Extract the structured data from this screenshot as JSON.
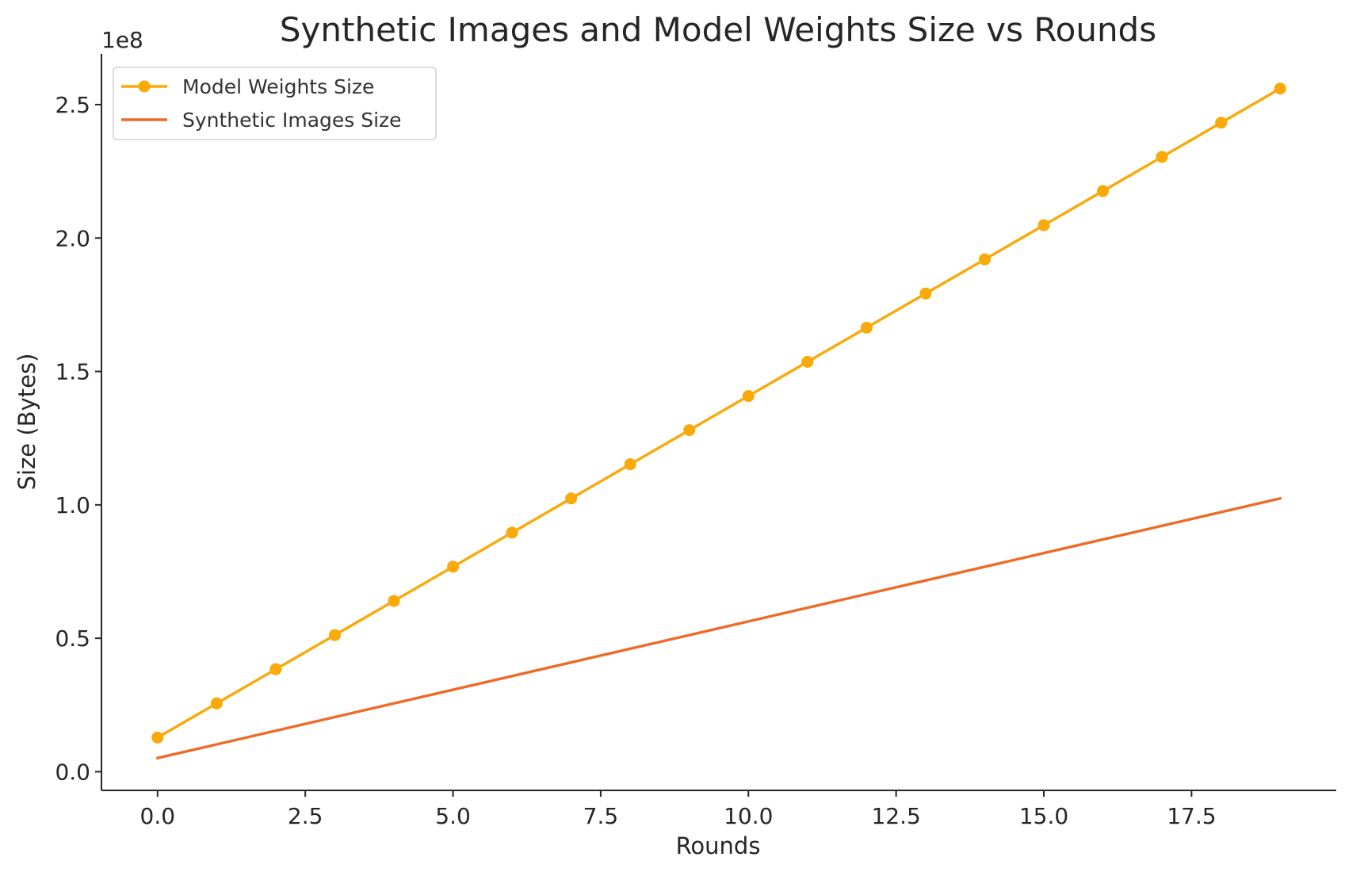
{
  "chart_data": {
    "type": "line",
    "title": "Synthetic Images and Model Weights Size vs Rounds",
    "xlabel": "Rounds",
    "ylabel": "Size (Bytes)",
    "y_offset_label": "1e8",
    "xlim": [
      -0.95,
      19.95
    ],
    "ylim": [
      -7000000,
      269000000
    ],
    "x_ticks": [
      0,
      2.5,
      5,
      7.5,
      10,
      12.5,
      15,
      17.5
    ],
    "x_tick_labels": [
      "0.0",
      "2.5",
      "5.0",
      "7.5",
      "10.0",
      "12.5",
      "15.0",
      "17.5"
    ],
    "y_ticks": [
      0,
      50000000,
      100000000,
      150000000,
      200000000,
      250000000
    ],
    "y_tick_labels": [
      "0.0",
      "0.5",
      "1.0",
      "1.5",
      "2.0",
      "2.5"
    ],
    "grid": false,
    "legend_position": "top-left",
    "series": [
      {
        "name": "Model Weights Size",
        "color": "#F9A908",
        "marker": "circle",
        "x": [
          0,
          1,
          2,
          3,
          4,
          5,
          6,
          7,
          8,
          9,
          10,
          11,
          12,
          13,
          14,
          15,
          16,
          17,
          18,
          19
        ],
        "values": [
          12800000,
          25600000,
          38400000,
          51200000,
          64000000,
          76800000,
          89600000,
          102400000,
          115200000,
          128000000,
          140800000,
          153600000,
          166400000,
          179200000,
          192000000,
          204800000,
          217600000,
          230400000,
          243200000,
          256000000
        ]
      },
      {
        "name": "Synthetic Images Size",
        "color": "#EE6A27",
        "marker": "none",
        "x": [
          0,
          1,
          2,
          3,
          4,
          5,
          6,
          7,
          8,
          9,
          10,
          11,
          12,
          13,
          14,
          15,
          16,
          17,
          18,
          19
        ],
        "values": [
          5120000,
          10240000,
          15360000,
          20480000,
          25600000,
          30720000,
          35840000,
          40960000,
          46080000,
          51200000,
          56320000,
          61440000,
          66560000,
          71680000,
          76800000,
          81920000,
          87040000,
          92160000,
          97280000,
          102400000
        ]
      }
    ]
  }
}
